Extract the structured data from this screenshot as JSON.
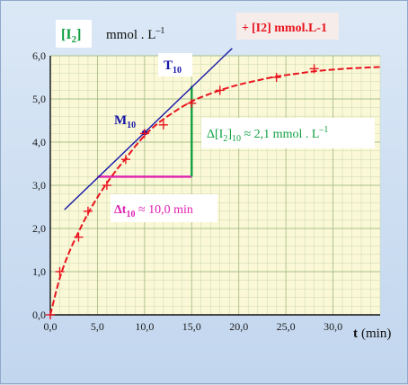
{
  "chart_data": {
    "type": "scatter",
    "title": "",
    "xlabel_var": "t",
    "xlabel_unit": "(min)",
    "ylabel_var": "[I",
    "ylabel_sub": "2",
    "ylabel_close": "]",
    "ylabel_unit": "mmol . L",
    "ylabel_exp": "–1",
    "legend": {
      "marker": "+",
      "label": "[I2] mmol.L-1",
      "position": "top-right"
    },
    "xlim": [
      0,
      35
    ],
    "ylim": [
      0,
      6
    ],
    "xticks": [
      0,
      5,
      10,
      15,
      20,
      25,
      30
    ],
    "xtick_labels": [
      "0,0",
      "5,0",
      "10,0",
      "15,0",
      "20,0",
      "25,0",
      "30,0"
    ],
    "yticks": [
      0,
      1,
      2,
      3,
      4,
      5,
      6
    ],
    "ytick_labels": [
      "0,0",
      "1,0",
      "2,0",
      "3,0",
      "4,0",
      "5,0",
      "6,0"
    ],
    "grid": true,
    "series": [
      {
        "name": "[I2] mmol.L-1",
        "x": [
          0,
          1,
          3,
          4,
          6,
          8,
          10,
          12,
          15,
          18,
          24,
          28
        ],
        "y": [
          0,
          1.0,
          1.8,
          2.4,
          3.0,
          3.6,
          4.2,
          4.4,
          4.9,
          5.2,
          5.5,
          5.7
        ]
      }
    ],
    "curve": {
      "x": [
        0,
        1,
        2,
        3,
        4,
        5,
        6,
        7,
        8,
        9,
        10,
        11,
        12,
        13,
        14,
        15,
        16,
        18,
        20,
        22,
        24,
        26,
        28,
        30,
        32,
        35
      ],
      "y": [
        0,
        0.85,
        1.45,
        1.92,
        2.35,
        2.72,
        3.05,
        3.35,
        3.62,
        3.9,
        4.15,
        4.36,
        4.53,
        4.68,
        4.82,
        4.94,
        5.04,
        5.2,
        5.33,
        5.43,
        5.52,
        5.58,
        5.64,
        5.68,
        5.71,
        5.74
      ]
    },
    "tangent": {
      "point": [
        10,
        4.22
      ],
      "slope": 0.21,
      "x_range": [
        1.5,
        19.3
      ]
    },
    "construction": {
      "horizontal": {
        "x0": 5,
        "x1": 15,
        "y": 3.2
      },
      "vertical": {
        "x": 15,
        "y0": 3.2,
        "y1": 5.3
      }
    },
    "annotations": {
      "point_label": "M",
      "point_sub": "10",
      "tangent_label": "T",
      "tangent_sub": "10",
      "delta_c_pre": "Δ[I",
      "delta_c_sub1": "2",
      "delta_c_mid": "]",
      "delta_c_sub2": "10",
      "delta_c_value": " ≈ 2,1 mmol . L",
      "delta_c_exp": "–1",
      "delta_t_pre": "Δt",
      "delta_t_sub": "10",
      "delta_t_value": " ≈ 10,0 min"
    },
    "colors": {
      "curve": "#e8141e",
      "tangent": "#1616a8",
      "horizontal": "#e020b0",
      "vertical": "#10a040",
      "ylabel_var": "#10a040",
      "point": "#1616a8",
      "plot_bg": "#fbf8d8",
      "grid": "#c8d8a8"
    }
  }
}
